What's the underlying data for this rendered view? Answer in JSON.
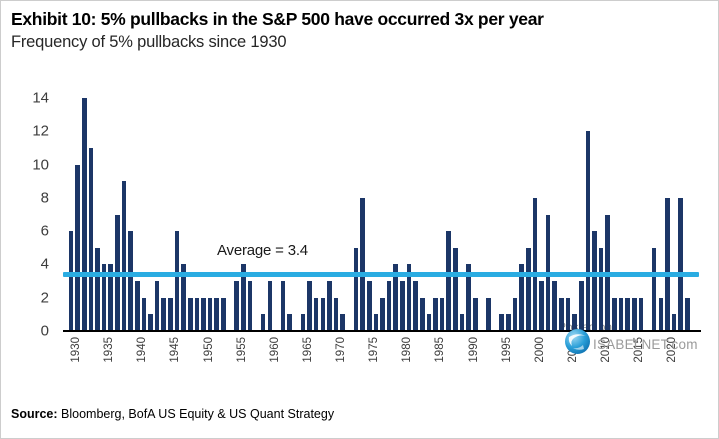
{
  "header": {
    "title": "Exhibit 10: 5% pullbacks in the S&P 500 have occurred 3x per year",
    "subtitle": "Frequency of 5% pullbacks since 1930"
  },
  "chart_data": {
    "type": "bar",
    "title": "Exhibit 10: 5% pullbacks in the S&P 500 have occurred 3x per year",
    "subtitle": "Frequency of 5% pullbacks since 1930",
    "xlabel": "",
    "ylabel": "",
    "x": [
      1930,
      1931,
      1932,
      1933,
      1934,
      1935,
      1936,
      1937,
      1938,
      1939,
      1940,
      1941,
      1942,
      1943,
      1944,
      1945,
      1946,
      1947,
      1948,
      1949,
      1950,
      1951,
      1952,
      1953,
      1954,
      1955,
      1956,
      1957,
      1958,
      1959,
      1960,
      1961,
      1962,
      1963,
      1964,
      1965,
      1966,
      1967,
      1968,
      1969,
      1970,
      1971,
      1972,
      1973,
      1974,
      1975,
      1976,
      1977,
      1978,
      1979,
      1980,
      1981,
      1982,
      1983,
      1984,
      1985,
      1986,
      1987,
      1988,
      1989,
      1990,
      1991,
      1992,
      1993,
      1994,
      1995,
      1996,
      1997,
      1998,
      1999,
      2000,
      2001,
      2002,
      2003,
      2004,
      2005,
      2006,
      2007,
      2008,
      2009,
      2010,
      2011,
      2012,
      2013,
      2014,
      2015,
      2016,
      2017,
      2018,
      2019,
      2020,
      2021,
      2022,
      2023
    ],
    "values": [
      6,
      10,
      14,
      11,
      5,
      4,
      4,
      7,
      9,
      6,
      3,
      2,
      1,
      3,
      2,
      2,
      6,
      4,
      2,
      2,
      2,
      2,
      2,
      2,
      0,
      3,
      4,
      3,
      0,
      1,
      3,
      0,
      3,
      1,
      0,
      1,
      3,
      2,
      2,
      3,
      2,
      1,
      0,
      5,
      8,
      3,
      1,
      2,
      3,
      4,
      3,
      4,
      3,
      2,
      1,
      2,
      2,
      6,
      5,
      1,
      4,
      2,
      0,
      2,
      0,
      1,
      1,
      2,
      4,
      5,
      8,
      3,
      7,
      3,
      2,
      2,
      1,
      3,
      12,
      6,
      5,
      7,
      2,
      2,
      2,
      2,
      2,
      0,
      5,
      2,
      8,
      1,
      8,
      2
    ],
    "ylim": [
      0,
      14
    ],
    "yticks": [
      0,
      2,
      4,
      6,
      8,
      10,
      12,
      14
    ],
    "xtick_labels": [
      "1930",
      "1935",
      "1940",
      "1945",
      "1950",
      "1955",
      "1960",
      "1965",
      "1970",
      "1975",
      "1980",
      "1985",
      "1990",
      "1995",
      "2000",
      "2005",
      "2010",
      "2015",
      "2020"
    ],
    "xtick_years": [
      1930,
      1935,
      1940,
      1945,
      1950,
      1955,
      1960,
      1965,
      1970,
      1975,
      1980,
      1985,
      1990,
      1995,
      2000,
      2005,
      2010,
      2015,
      2020
    ],
    "grid": false,
    "legend": false,
    "bar_color": "#1c3667",
    "average_line": {
      "value": 3.4,
      "label": "Average = 3.4",
      "color": "#2aace2"
    }
  },
  "watermark": {
    "posted_on": "Posted on",
    "site": "ISABELNET.com",
    "globe_icon": "globe-icon"
  },
  "source": {
    "label": "Source:",
    "text": " Bloomberg, BofA US Equity & US Quant Strategy"
  }
}
